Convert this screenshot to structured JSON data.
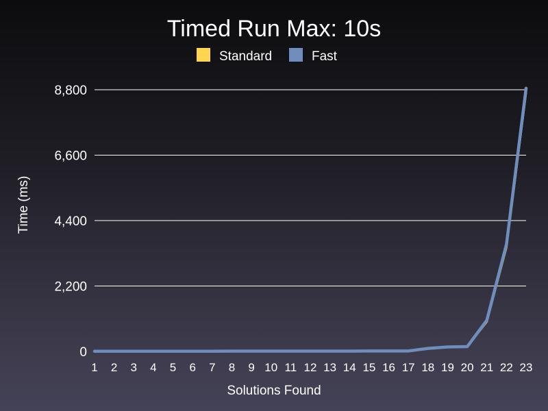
{
  "chart_data": {
    "type": "line",
    "title": "Timed Run Max: 10s",
    "xlabel": "Solutions Found",
    "ylabel": "Time (ms)",
    "x": [
      1,
      2,
      3,
      4,
      5,
      6,
      7,
      8,
      9,
      10,
      11,
      12,
      13,
      14,
      15,
      16,
      17,
      18,
      19,
      20,
      21,
      22,
      23
    ],
    "xtick_labels": [
      "1",
      "2",
      "3",
      "4",
      "5",
      "6",
      "7",
      "8",
      "9",
      "10",
      "11",
      "12",
      "13",
      "14",
      "15",
      "16",
      "17",
      "18",
      "19",
      "20",
      "21",
      "22",
      "23"
    ],
    "yticks": [
      0,
      2200,
      4400,
      6600,
      8800
    ],
    "ytick_labels": [
      "0",
      "2,200",
      "4,400",
      "6,600",
      "8,800"
    ],
    "ylim": [
      0,
      8800
    ],
    "grid": true,
    "legend_position": "top-center",
    "series": [
      {
        "name": "Standard",
        "color": "#ffd54f",
        "values": [
          5,
          5,
          5,
          5,
          5,
          5,
          5,
          10,
          10,
          10,
          10,
          10,
          10,
          10,
          15,
          15,
          15,
          100,
          150,
          160,
          1000,
          3500,
          8700
        ]
      },
      {
        "name": "Fast",
        "color": "#6f8dbd",
        "values": [
          5,
          5,
          5,
          5,
          5,
          5,
          5,
          10,
          10,
          10,
          10,
          10,
          10,
          10,
          15,
          15,
          15,
          100,
          150,
          160,
          1050,
          3600,
          8850
        ]
      }
    ]
  }
}
